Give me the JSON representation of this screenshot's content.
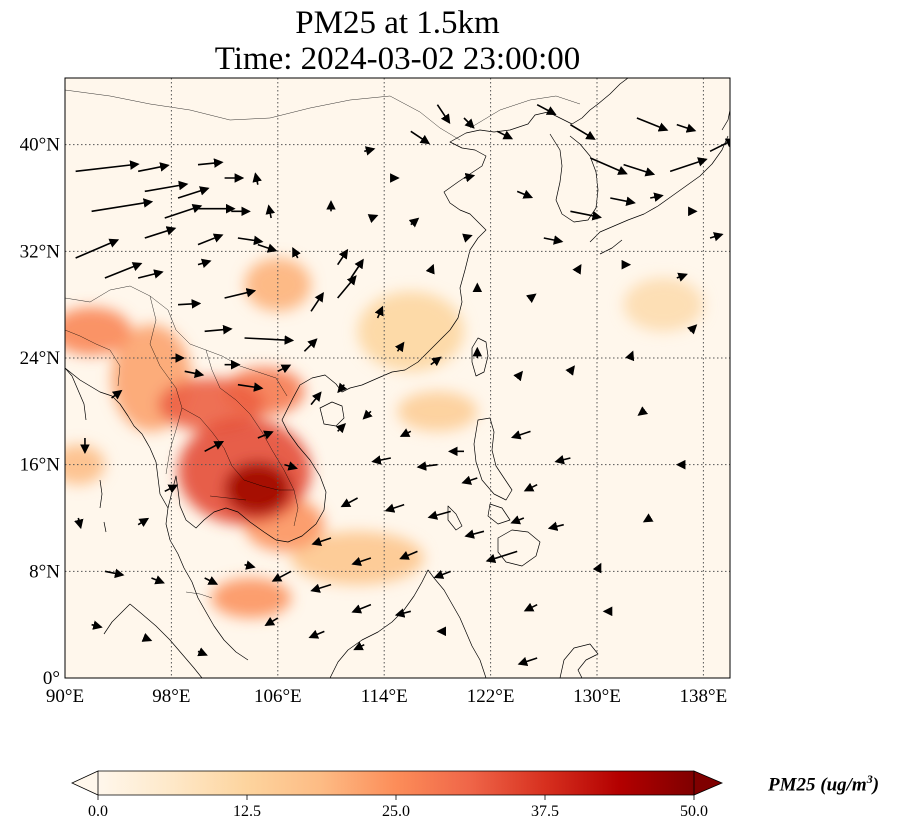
{
  "title_line1": "PM25 at 1.5km",
  "title_line2": "Time: 2024-03-02 23:00:00",
  "map": {
    "lon_range": [
      90,
      140
    ],
    "lat_range": [
      0,
      45
    ],
    "lon_ticks": [
      {
        "value": 90,
        "label": "90°E"
      },
      {
        "value": 98,
        "label": "98°E"
      },
      {
        "value": 106,
        "label": "106°E"
      },
      {
        "value": 114,
        "label": "114°E"
      },
      {
        "value": 122,
        "label": "122°E"
      },
      {
        "value": 130,
        "label": "130°E"
      },
      {
        "value": 138,
        "label": "138°E"
      }
    ],
    "lat_ticks": [
      {
        "value": 0,
        "label": "0°"
      },
      {
        "value": 8,
        "label": "8°N"
      },
      {
        "value": 16,
        "label": "16°N"
      },
      {
        "value": 24,
        "label": "24°N"
      },
      {
        "value": 32,
        "label": "32°N"
      },
      {
        "value": 40,
        "label": "40°N"
      }
    ],
    "gridlines": true,
    "background_color": "#fff7ec",
    "hotspots": [
      {
        "lon": 104.5,
        "lat": 14.2,
        "value": 46,
        "r_lon": 2.5,
        "r_lat": 2.0
      },
      {
        "lon": 103.5,
        "lat": 15.5,
        "value": 34,
        "r_lon": 5.0,
        "r_lat": 4.0
      },
      {
        "lon": 101.0,
        "lat": 20.5,
        "value": 32,
        "r_lon": 4.0,
        "r_lat": 2.0
      },
      {
        "lon": 105.0,
        "lat": 21.5,
        "value": 28,
        "r_lon": 3.0,
        "r_lat": 1.8
      },
      {
        "lon": 92.0,
        "lat": 26.0,
        "value": 26,
        "r_lon": 3.0,
        "r_lat": 1.8
      },
      {
        "lon": 96.5,
        "lat": 22.5,
        "value": 22,
        "r_lon": 3.0,
        "r_lat": 4.0
      },
      {
        "lon": 106.5,
        "lat": 11.5,
        "value": 24,
        "r_lon": 3.0,
        "r_lat": 2.0
      },
      {
        "lon": 104.0,
        "lat": 6.0,
        "value": 24,
        "r_lon": 3.0,
        "r_lat": 1.5
      },
      {
        "lon": 106.0,
        "lat": 29.5,
        "value": 20,
        "r_lon": 2.5,
        "r_lat": 2.0
      },
      {
        "lon": 91.0,
        "lat": 16.0,
        "value": 18,
        "r_lon": 2.0,
        "r_lat": 1.5
      },
      {
        "lon": 112.0,
        "lat": 9.0,
        "value": 16,
        "r_lon": 5.0,
        "r_lat": 2.0
      },
      {
        "lon": 118.0,
        "lat": 20.0,
        "value": 14,
        "r_lon": 3.0,
        "r_lat": 1.5
      },
      {
        "lon": 116.0,
        "lat": 26.0,
        "value": 12,
        "r_lon": 4.0,
        "r_lat": 3.0
      },
      {
        "lon": 135.0,
        "lat": 28.0,
        "value": 10,
        "r_lon": 3.0,
        "r_lat": 2.0
      }
    ]
  },
  "colorbar": {
    "min": 0,
    "max": 50,
    "ticks": [
      "0.0",
      "12.5",
      "25.0",
      "37.5",
      "50.0"
    ],
    "colormap": [
      "#fff7ec",
      "#fee8c8",
      "#fdd49e",
      "#fdbb84",
      "#fc8d59",
      "#ef6548",
      "#d7301f",
      "#b30000",
      "#7f0000"
    ],
    "label": "PM25 (ug/m",
    "label_sup": "3",
    "label_close": ")"
  },
  "wind_vectors": [
    {
      "lon": 90.8,
      "lat": 38.0,
      "u": 5.2,
      "v": 0.6
    },
    {
      "lon": 92.0,
      "lat": 35.0,
      "u": 5.0,
      "v": 0.8
    },
    {
      "lon": 90.8,
      "lat": 31.5,
      "u": 3.5,
      "v": 1.5
    },
    {
      "lon": 93.0,
      "lat": 30.0,
      "u": 3.0,
      "v": 1.2
    },
    {
      "lon": 95.5,
      "lat": 38.0,
      "u": 2.5,
      "v": 0.5
    },
    {
      "lon": 96.0,
      "lat": 36.5,
      "u": 3.5,
      "v": 0.6
    },
    {
      "lon": 97.5,
      "lat": 34.5,
      "u": 3.0,
      "v": 1.0
    },
    {
      "lon": 96.0,
      "lat": 33.0,
      "u": 2.5,
      "v": 0.8
    },
    {
      "lon": 98.5,
      "lat": 36.0,
      "u": 2.5,
      "v": 0.8
    },
    {
      "lon": 100.0,
      "lat": 38.5,
      "u": 2.0,
      "v": 0.2
    },
    {
      "lon": 102.0,
      "lat": 37.5,
      "u": 1.5,
      "v": 0.0
    },
    {
      "lon": 100.0,
      "lat": 35.2,
      "u": 3.0,
      "v": 0.0
    },
    {
      "lon": 102.5,
      "lat": 35.0,
      "u": 1.5,
      "v": 0.0
    },
    {
      "lon": 100.0,
      "lat": 32.5,
      "u": 2.0,
      "v": 0.8
    },
    {
      "lon": 103.0,
      "lat": 33.0,
      "u": 2.0,
      "v": -0.3
    },
    {
      "lon": 104.5,
      "lat": 32.5,
      "u": 1.5,
      "v": -0.5
    },
    {
      "lon": 95.5,
      "lat": 30.0,
      "u": 2.0,
      "v": 0.5
    },
    {
      "lon": 100.0,
      "lat": 31.0,
      "u": 1.0,
      "v": 0.3
    },
    {
      "lon": 98.5,
      "lat": 28.0,
      "u": 1.8,
      "v": 0.1
    },
    {
      "lon": 102.0,
      "lat": 28.5,
      "u": 2.5,
      "v": 0.6
    },
    {
      "lon": 100.5,
      "lat": 26.0,
      "u": 2.2,
      "v": 0.2
    },
    {
      "lon": 103.5,
      "lat": 25.5,
      "u": 4.0,
      "v": -0.2
    },
    {
      "lon": 98.0,
      "lat": 24.0,
      "u": 1.0,
      "v": 0.0
    },
    {
      "lon": 99.0,
      "lat": 23.0,
      "u": 1.5,
      "v": -0.3
    },
    {
      "lon": 102.0,
      "lat": 23.5,
      "u": 1.2,
      "v": 0.0
    },
    {
      "lon": 103.0,
      "lat": 22.0,
      "u": 2.0,
      "v": -0.3
    },
    {
      "lon": 106.0,
      "lat": 23.0,
      "u": 1.0,
      "v": 0.5
    },
    {
      "lon": 108.0,
      "lat": 24.5,
      "u": 1.0,
      "v": 1.0
    },
    {
      "lon": 108.5,
      "lat": 27.5,
      "u": 1.0,
      "v": 1.5
    },
    {
      "lon": 110.5,
      "lat": 28.5,
      "u": 1.5,
      "v": 1.8
    },
    {
      "lon": 111.5,
      "lat": 30.0,
      "u": 1.0,
      "v": 1.5
    },
    {
      "lon": 110.5,
      "lat": 31.0,
      "u": 0.8,
      "v": 1.2
    },
    {
      "lon": 107.5,
      "lat": 31.5,
      "u": -0.4,
      "v": 0.8
    },
    {
      "lon": 105.5,
      "lat": 34.5,
      "u": -0.2,
      "v": 1.0
    },
    {
      "lon": 104.5,
      "lat": 37.0,
      "u": -0.2,
      "v": 0.9
    },
    {
      "lon": 110.0,
      "lat": 35.0,
      "u": 0.0,
      "v": 0.8
    },
    {
      "lon": 113.0,
      "lat": 34.5,
      "u": 0.5,
      "v": 0.2
    },
    {
      "lon": 114.5,
      "lat": 37.5,
      "u": 0.6,
      "v": 0.0
    },
    {
      "lon": 112.5,
      "lat": 39.5,
      "u": 0.8,
      "v": 0.2
    },
    {
      "lon": 116.0,
      "lat": 41.0,
      "u": 1.5,
      "v": -1.0
    },
    {
      "lon": 118.0,
      "lat": 43.0,
      "u": 1.0,
      "v": -1.5
    },
    {
      "lon": 120.0,
      "lat": 42.0,
      "u": 0.8,
      "v": -0.8
    },
    {
      "lon": 122.5,
      "lat": 41.0,
      "u": 1.2,
      "v": -0.6
    },
    {
      "lon": 125.5,
      "lat": 43.0,
      "u": 1.5,
      "v": -0.8
    },
    {
      "lon": 128.0,
      "lat": 41.5,
      "u": 2.0,
      "v": -1.2
    },
    {
      "lon": 129.5,
      "lat": 39.0,
      "u": 3.0,
      "v": -1.3
    },
    {
      "lon": 132.0,
      "lat": 38.5,
      "u": 2.5,
      "v": -0.8
    },
    {
      "lon": 135.5,
      "lat": 38.0,
      "u": 3.0,
      "v": 1.0
    },
    {
      "lon": 138.5,
      "lat": 39.5,
      "u": 2.0,
      "v": 1.0
    },
    {
      "lon": 133.0,
      "lat": 42.0,
      "u": 2.5,
      "v": -1.0
    },
    {
      "lon": 136.0,
      "lat": 41.5,
      "u": 1.5,
      "v": -0.5
    },
    {
      "lon": 128.0,
      "lat": 35.0,
      "u": 2.5,
      "v": -0.5
    },
    {
      "lon": 131.0,
      "lat": 36.0,
      "u": 2.0,
      "v": -0.4
    },
    {
      "lon": 134.0,
      "lat": 36.0,
      "u": 1.0,
      "v": 0.2
    },
    {
      "lon": 137.0,
      "lat": 35.0,
      "u": 0.5,
      "v": 0.0
    },
    {
      "lon": 120.0,
      "lat": 37.5,
      "u": 0.8,
      "v": 0.2
    },
    {
      "lon": 124.0,
      "lat": 36.5,
      "u": 1.2,
      "v": -0.5
    },
    {
      "lon": 126.0,
      "lat": 33.0,
      "u": 1.5,
      "v": -0.3
    },
    {
      "lon": 120.0,
      "lat": 33.0,
      "u": 0.6,
      "v": 0.2
    },
    {
      "lon": 117.5,
      "lat": 30.5,
      "u": 0.2,
      "v": 0.5
    },
    {
      "lon": 121.0,
      "lat": 29.0,
      "u": 0.0,
      "v": 0.6
    },
    {
      "lon": 125.0,
      "lat": 28.5,
      "u": 0.4,
      "v": 0.3
    },
    {
      "lon": 128.5,
      "lat": 30.5,
      "u": 0.3,
      "v": 0.5
    },
    {
      "lon": 132.0,
      "lat": 31.0,
      "u": 0.5,
      "v": 0.0
    },
    {
      "lon": 136.0,
      "lat": 30.0,
      "u": 0.8,
      "v": 0.3
    },
    {
      "lon": 138.5,
      "lat": 33.0,
      "u": 1.0,
      "v": 0.3
    },
    {
      "lon": 116.0,
      "lat": 34.0,
      "u": 0.6,
      "v": 0.5
    },
    {
      "lon": 113.5,
      "lat": 27.0,
      "u": 0.4,
      "v": 0.9
    },
    {
      "lon": 115.0,
      "lat": 24.5,
      "u": 0.5,
      "v": 0.7
    },
    {
      "lon": 117.5,
      "lat": 23.5,
      "u": 0.8,
      "v": 0.6
    },
    {
      "lon": 121.0,
      "lat": 24.0,
      "u": 0.0,
      "v": 0.8
    },
    {
      "lon": 124.0,
      "lat": 22.5,
      "u": 0.4,
      "v": 0.5
    },
    {
      "lon": 128.0,
      "lat": 23.0,
      "u": 0.3,
      "v": 0.4
    },
    {
      "lon": 132.5,
      "lat": 24.0,
      "u": 0.2,
      "v": 0.5
    },
    {
      "lon": 137.0,
      "lat": 26.0,
      "u": 0.5,
      "v": 0.5
    },
    {
      "lon": 111.0,
      "lat": 22.0,
      "u": -0.5,
      "v": -0.6
    },
    {
      "lon": 108.5,
      "lat": 20.5,
      "u": 0.8,
      "v": 1.0
    },
    {
      "lon": 110.5,
      "lat": 18.5,
      "u": 0.6,
      "v": 0.6
    },
    {
      "lon": 113.0,
      "lat": 20.0,
      "u": -0.6,
      "v": -0.6
    },
    {
      "lon": 116.0,
      "lat": 18.5,
      "u": -0.8,
      "v": -0.4
    },
    {
      "lon": 120.0,
      "lat": 17.0,
      "u": -1.2,
      "v": 0.0
    },
    {
      "lon": 114.5,
      "lat": 16.5,
      "u": -1.5,
      "v": -0.3
    },
    {
      "lon": 118.0,
      "lat": 16.0,
      "u": -1.6,
      "v": -0.2
    },
    {
      "lon": 121.0,
      "lat": 15.0,
      "u": -1.2,
      "v": -0.4
    },
    {
      "lon": 125.0,
      "lat": 18.5,
      "u": -1.5,
      "v": -0.5
    },
    {
      "lon": 128.0,
      "lat": 16.5,
      "u": -1.2,
      "v": -0.3
    },
    {
      "lon": 125.5,
      "lat": 14.5,
      "u": -1.0,
      "v": -0.5
    },
    {
      "lon": 112.0,
      "lat": 13.5,
      "u": -1.3,
      "v": -0.7
    },
    {
      "lon": 115.5,
      "lat": 13.0,
      "u": -1.5,
      "v": -0.5
    },
    {
      "lon": 119.0,
      "lat": 12.5,
      "u": -1.8,
      "v": -0.5
    },
    {
      "lon": 121.5,
      "lat": 11.0,
      "u": -1.5,
      "v": -0.4
    },
    {
      "lon": 124.5,
      "lat": 12.0,
      "u": -1.0,
      "v": -0.4
    },
    {
      "lon": 127.5,
      "lat": 11.5,
      "u": -1.2,
      "v": -0.3
    },
    {
      "lon": 124.0,
      "lat": 9.5,
      "u": -2.5,
      "v": -0.8
    },
    {
      "lon": 110.0,
      "lat": 10.5,
      "u": -1.5,
      "v": -0.5
    },
    {
      "lon": 113.0,
      "lat": 9.0,
      "u": -1.5,
      "v": -0.5
    },
    {
      "lon": 116.5,
      "lat": 9.5,
      "u": -1.4,
      "v": -0.6
    },
    {
      "lon": 119.0,
      "lat": 8.0,
      "u": -1.3,
      "v": -0.5
    },
    {
      "lon": 107.0,
      "lat": 8.0,
      "u": -1.5,
      "v": -0.8
    },
    {
      "lon": 110.0,
      "lat": 7.0,
      "u": -1.6,
      "v": -0.5
    },
    {
      "lon": 113.0,
      "lat": 5.5,
      "u": -1.5,
      "v": -0.6
    },
    {
      "lon": 116.0,
      "lat": 5.0,
      "u": -1.2,
      "v": -0.3
    },
    {
      "lon": 109.5,
      "lat": 3.5,
      "u": -1.2,
      "v": -0.5
    },
    {
      "lon": 106.0,
      "lat": 4.5,
      "u": -1.0,
      "v": -0.6
    },
    {
      "lon": 112.5,
      "lat": 2.5,
      "u": -0.8,
      "v": -0.4
    },
    {
      "lon": 118.5,
      "lat": 3.5,
      "u": -0.5,
      "v": 0.0
    },
    {
      "lon": 125.5,
      "lat": 1.5,
      "u": -1.5,
      "v": -0.5
    },
    {
      "lon": 100.5,
      "lat": 17.0,
      "u": 1.5,
      "v": 0.8
    },
    {
      "lon": 97.5,
      "lat": 14.0,
      "u": 1.0,
      "v": 0.5
    },
    {
      "lon": 95.5,
      "lat": 11.5,
      "u": 0.8,
      "v": 0.5
    },
    {
      "lon": 93.0,
      "lat": 8.0,
      "u": 1.5,
      "v": -0.3
    },
    {
      "lon": 96.5,
      "lat": 7.5,
      "u": 1.0,
      "v": -0.4
    },
    {
      "lon": 100.5,
      "lat": 7.5,
      "u": 1.0,
      "v": -0.5
    },
    {
      "lon": 103.5,
      "lat": 8.5,
      "u": 0.8,
      "v": -0.2
    },
    {
      "lon": 92.0,
      "lat": 4.0,
      "u": 0.8,
      "v": -0.2
    },
    {
      "lon": 96.0,
      "lat": 3.0,
      "u": 0.5,
      "v": -0.2
    },
    {
      "lon": 100.0,
      "lat": 2.0,
      "u": 0.7,
      "v": -0.3
    },
    {
      "lon": 91.5,
      "lat": 18.0,
      "u": 0.0,
      "v": -1.2
    },
    {
      "lon": 91.0,
      "lat": 12.0,
      "u": 0.2,
      "v": -0.8
    },
    {
      "lon": 93.5,
      "lat": 21.0,
      "u": 0.8,
      "v": 0.6
    },
    {
      "lon": 104.5,
      "lat": 18.0,
      "u": 1.2,
      "v": 0.5
    },
    {
      "lon": 106.5,
      "lat": 16.0,
      "u": 1.0,
      "v": -0.3
    },
    {
      "lon": 130.0,
      "lat": 8.0,
      "u": 0.3,
      "v": 0.6
    },
    {
      "lon": 134.0,
      "lat": 12.0,
      "u": -0.5,
      "v": -0.3
    },
    {
      "lon": 136.5,
      "lat": 16.0,
      "u": -0.5,
      "v": 0.0
    },
    {
      "lon": 133.5,
      "lat": 20.0,
      "u": -0.4,
      "v": -0.3
    },
    {
      "lon": 131.0,
      "lat": 5.0,
      "u": -0.5,
      "v": 0.0
    },
    {
      "lon": 125.5,
      "lat": 5.5,
      "u": -1.0,
      "v": -0.5
    }
  ]
}
